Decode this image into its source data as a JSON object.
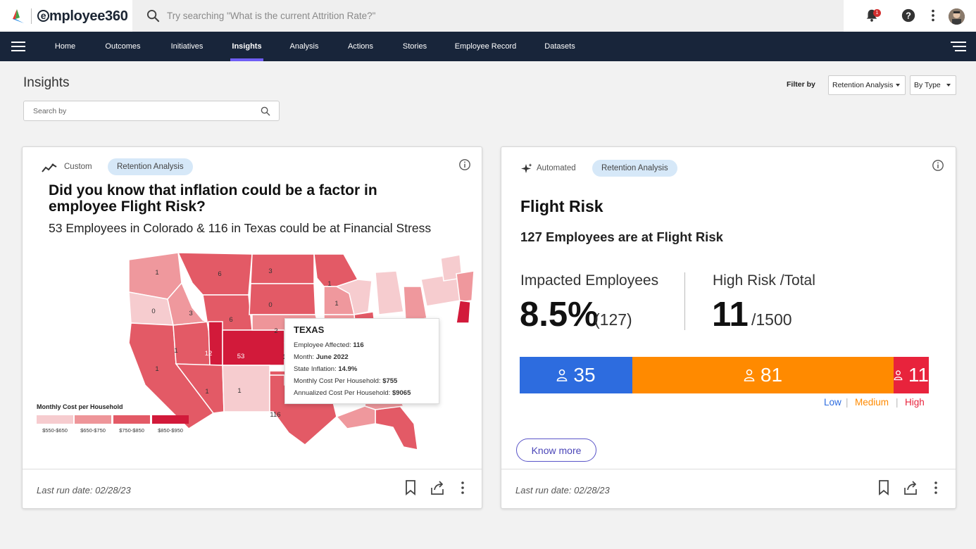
{
  "app": {
    "brand_prefix": "e",
    "brand_name": "mployee360"
  },
  "search": {
    "placeholder": "Try searching \"What is the current Attrition Rate?\""
  },
  "notifications": {
    "count": "1"
  },
  "nav": {
    "items": [
      "Home",
      "Outcomes",
      "Initiatives",
      "Insights",
      "Analysis",
      "Actions",
      "Stories",
      "Employee Record",
      "Datasets"
    ],
    "active": "Insights"
  },
  "page": {
    "title": "Insights",
    "filter_label": "Filter by",
    "filter_value": "Retention Analysis",
    "type_value": "By Type",
    "search_placeholder": "Search by"
  },
  "card1": {
    "type": "Custom",
    "tag": "Retention Analysis",
    "title": "Did you know that inflation could be a factor in employee Flight Risk?",
    "subtitle": "53 Employees in Colorado & 116 in Texas could be at Financial Stress",
    "map_labels": [
      "1",
      "6",
      "3",
      "1",
      "0",
      "0",
      "3",
      "6",
      "1",
      "1",
      "2",
      "1",
      "1",
      "12",
      "53",
      "1",
      "1",
      "1",
      "116"
    ],
    "tooltip": {
      "title": "TEXAS",
      "rows": [
        {
          "label": "Employee Affected:",
          "value": "116"
        },
        {
          "label": "Month:",
          "value": "June 2022"
        },
        {
          "label": "State Inflation:",
          "value": "14.9%"
        },
        {
          "label": "Monthly Cost Per Household:",
          "value": "$755"
        },
        {
          "label": "Annualized Cost Per Household:",
          "value": "$9065"
        }
      ]
    },
    "legend": {
      "title": "Monthly Cost per Household",
      "bins": [
        "$550-$650",
        "$650-$750",
        "$750-$850",
        "$850-$950"
      ],
      "colors": [
        "#f6cccf",
        "#ee9599",
        "#e35a66",
        "#d21a3a"
      ]
    },
    "last_run": "Last run date: 02/28/23"
  },
  "card2": {
    "type": "Automated",
    "tag": "Retention Analysis",
    "title": "Flight Risk",
    "subtitle": "127 Employees are at Flight Risk",
    "impacted_label": "Impacted Employees",
    "impacted_pct": "8.5%",
    "impacted_count": "(127)",
    "highrisk_label": "High Risk /Total",
    "highrisk_value": "11",
    "highrisk_total": "/1500",
    "segments": [
      {
        "name": "Low",
        "value": 35,
        "color": "#2d6cdf"
      },
      {
        "name": "Medium",
        "value": 81,
        "color": "#ff8a00"
      },
      {
        "name": "High",
        "value": 11,
        "color": "#e8233c"
      }
    ],
    "legend": {
      "low": "Low",
      "medium": "Medium",
      "high": "High",
      "sep": "|"
    },
    "know_more": "Know more",
    "last_run": "Last run date: 02/28/23"
  }
}
